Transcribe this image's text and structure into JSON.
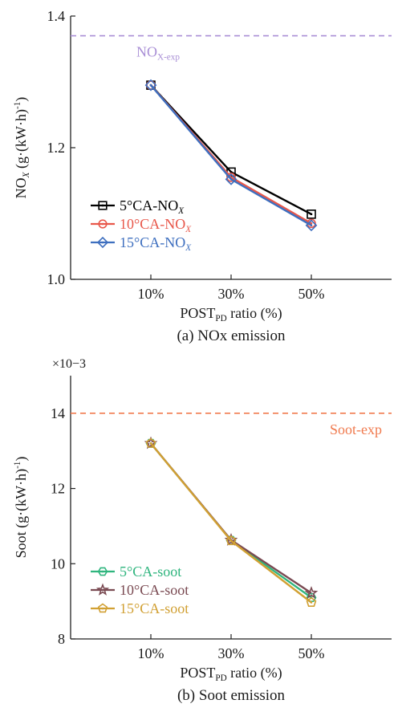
{
  "chart_data": [
    {
      "type": "line",
      "caption": "(a) NOx emission",
      "xlabel": "POST_PD ratio (%)",
      "ylabel": "NO_X (g·(kW·h)^-1)",
      "categories": [
        "10%",
        "30%",
        "50%"
      ],
      "ylim": [
        1.0,
        1.4
      ],
      "yticks": [
        1.0,
        1.2,
        1.4
      ],
      "ytick_labels": [
        "1.0",
        "1.2",
        "1.4"
      ],
      "grid": false,
      "legend_position": "lower-left",
      "reference": {
        "label": "NOX-exp",
        "value": 1.37,
        "color": "#a98fd6"
      },
      "series": [
        {
          "name": "5°CA-NOX",
          "values": [
            1.295,
            1.163,
            1.099
          ],
          "color": "#000000",
          "marker": "square"
        },
        {
          "name": "10°CA-NOX",
          "values": [
            1.295,
            1.155,
            1.085
          ],
          "color": "#e8574a",
          "marker": "circle"
        },
        {
          "name": "15°CA-NOX",
          "values": [
            1.295,
            1.152,
            1.082
          ],
          "color": "#3e6fbf",
          "marker": "diamond"
        }
      ]
    },
    {
      "type": "line",
      "caption": "(b) Soot emission",
      "xlabel": "POST_PD ratio (%)",
      "ylabel": "Soot (g·(kW·h)^-1)",
      "multiplier": "×10−3",
      "categories": [
        "10%",
        "30%",
        "50%"
      ],
      "ylim": [
        8,
        15
      ],
      "yticks": [
        8,
        10,
        12,
        14
      ],
      "ytick_labels": [
        "8",
        "10",
        "12",
        "14"
      ],
      "grid": false,
      "legend_position": "lower-left",
      "reference": {
        "label": "Soot-exp",
        "value": 14.0,
        "color": "#f07a4e"
      },
      "series": [
        {
          "name": "5°CA-soot",
          "values": [
            13.2,
            10.62,
            9.1
          ],
          "color": "#2fb57e",
          "marker": "hexagon"
        },
        {
          "name": "10°CA-soot",
          "values": [
            13.2,
            10.63,
            9.22
          ],
          "color": "#7a4a52",
          "marker": "star"
        },
        {
          "name": "15°CA-soot",
          "values": [
            13.2,
            10.61,
            8.97
          ],
          "color": "#d1a033",
          "marker": "pentagon"
        }
      ]
    }
  ]
}
